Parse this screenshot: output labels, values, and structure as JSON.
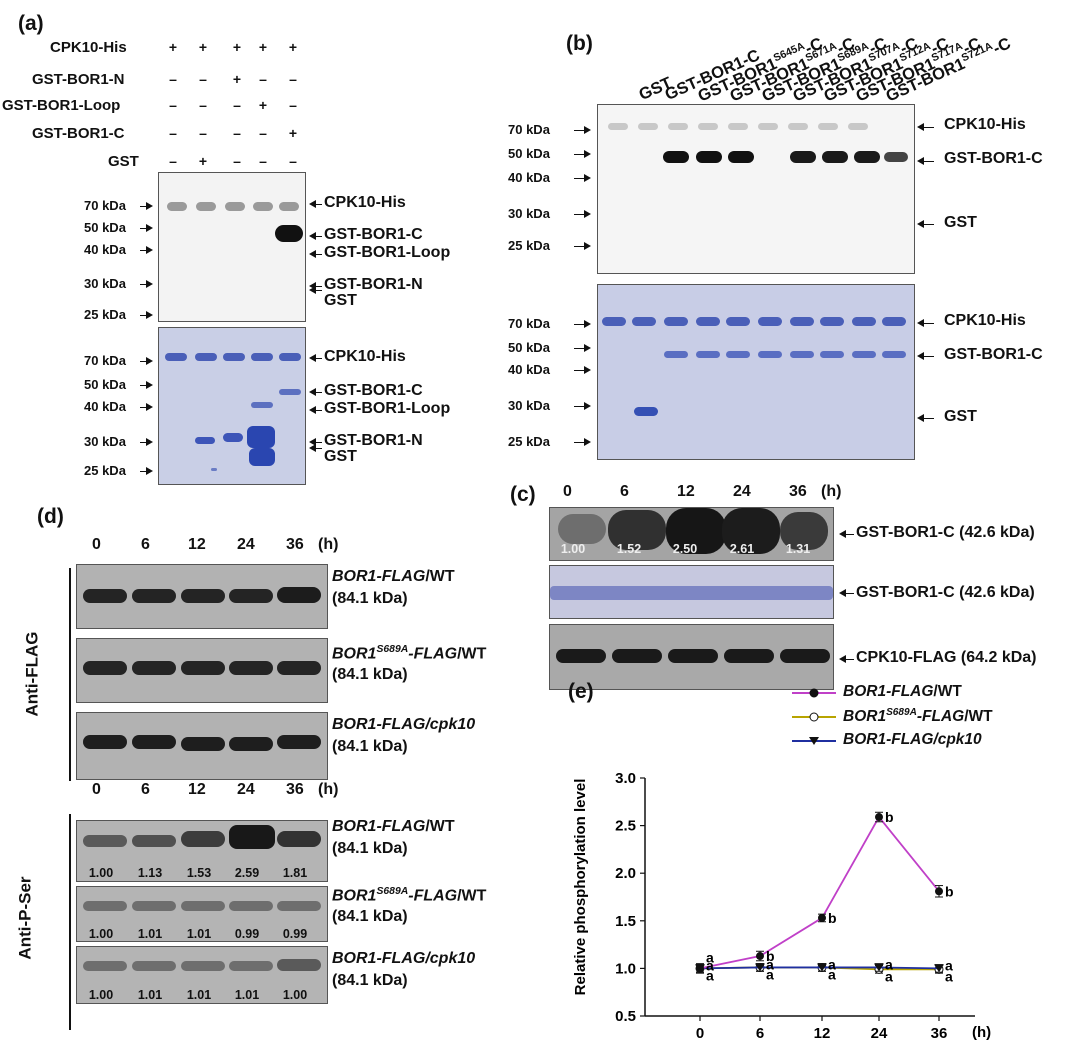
{
  "panel_a": {
    "letter": "(a)",
    "row_labels": [
      "CPK10-His",
      "GST-BOR1-N",
      "GST-BOR1-Loop",
      "GST-BOR1-C",
      "GST"
    ],
    "row_marks": [
      [
        "+",
        "+",
        "+",
        "+",
        "+"
      ],
      [
        "–",
        "–",
        "+",
        "–",
        "–"
      ],
      [
        "–",
        "–",
        "–",
        "+",
        "–"
      ],
      [
        "–",
        "–",
        "–",
        "–",
        "+"
      ],
      [
        "–",
        "+",
        "–",
        "–",
        "–"
      ]
    ],
    "autorad_markers": [
      "70 kDa",
      "50 kDa",
      "40 kDa",
      "30 kDa",
      "25 kDa"
    ],
    "autorad_right": [
      "CPK10-His",
      "GST-BOR1-C",
      "GST-BOR1-Loop",
      "GST-BOR1-N",
      "GST"
    ],
    "cbb_markers": [
      "70 kDa",
      "50 kDa",
      "40 kDa",
      "30 kDa",
      "25 kDa"
    ],
    "cbb_right": [
      "CPK10-His",
      "GST-BOR1-C",
      "GST-BOR1-Loop",
      "GST-BOR1-N",
      "GST"
    ]
  },
  "panel_b": {
    "letter": "(b)",
    "lanes": [
      {
        "main": "GST",
        "sup": ""
      },
      {
        "main": "GST-BOR1-C",
        "sup": ""
      },
      {
        "main": "GST-BOR1",
        "sup": "S645A",
        "tail": "-C"
      },
      {
        "main": "GST-BOR1",
        "sup": "S671A",
        "tail": "-C"
      },
      {
        "main": "GST-BOR1",
        "sup": "S689A",
        "tail": "-C"
      },
      {
        "main": "GST-BOR1",
        "sup": "S707A",
        "tail": "-C"
      },
      {
        "main": "GST-BOR1",
        "sup": "S712A",
        "tail": "-C"
      },
      {
        "main": "GST-BOR1",
        "sup": "S717A",
        "tail": "-C"
      },
      {
        "main": "GST-BOR1",
        "sup": "S721A",
        "tail": "-C"
      }
    ],
    "autorad_markers": [
      "70 kDa",
      "50 kDa",
      "40 kDa",
      "30 kDa",
      "25 kDa"
    ],
    "autorad_right": [
      "CPK10-His",
      "GST-BOR1-C",
      "GST"
    ],
    "cbb_markers": [
      "70 kDa",
      "50 kDa",
      "40 kDa",
      "30 kDa",
      "25 kDa"
    ],
    "cbb_right": [
      "CPK10-His",
      "GST-BOR1-C",
      "GST"
    ]
  },
  "panel_c": {
    "letter": "(c)",
    "timepoints": [
      "0",
      "6",
      "12",
      "24",
      "36"
    ],
    "unit": "(h)",
    "quant": [
      "1.00",
      "1.52",
      "2.50",
      "2.61",
      "1.31"
    ],
    "labels": [
      "GST-BOR1-C (42.6 kDa)",
      "GST-BOR1-C (42.6 kDa)",
      "CPK10-FLAG (64.2 kDa)"
    ]
  },
  "panel_d": {
    "letter": "(d)",
    "timepoints": [
      "0",
      "6",
      "12",
      "24",
      "36"
    ],
    "unit": "(h)",
    "group1_label": "Anti-FLAG",
    "group2_label": "Anti-P-Ser",
    "mw": "(84.1 kDa)",
    "blots": [
      {
        "g1": "BOR1-FLAG",
        "sup": "",
        "g2": "/WT"
      },
      {
        "g1": "BOR1",
        "sup": "S689A",
        "g2": "-FLAG",
        "g3": "/WT"
      },
      {
        "g1": "BOR1-FLAG/",
        "sup": "",
        "g2": "cpk10"
      }
    ],
    "pser_quant": [
      [
        "1.00",
        "1.13",
        "1.53",
        "2.59",
        "1.81"
      ],
      [
        "1.00",
        "1.01",
        "1.01",
        "0.99",
        "0.99"
      ],
      [
        "1.00",
        "1.01",
        "1.01",
        "1.01",
        "1.00"
      ]
    ]
  },
  "panel_e": {
    "letter": "(e)",
    "legend": [
      {
        "a": "BOR1-FLAG",
        "sup": "",
        "b": "/WT",
        "color": "#c040c8"
      },
      {
        "a": "BOR1",
        "sup": "S689A",
        "b": "-FLAG/WT",
        "color": "#b8a400"
      },
      {
        "a": "BOR1-FLAG/",
        "sup": "",
        "b": "cpk10",
        "color": "#1f2fa0"
      }
    ]
  },
  "chart_data": {
    "type": "line",
    "title": "",
    "xlabel": "(h)",
    "ylabel": "Relative phosphorylation level",
    "x": [
      0,
      6,
      12,
      24,
      36
    ],
    "x_ticks": [
      "0",
      "6",
      "12",
      "24",
      "36"
    ],
    "ylim": [
      0.5,
      3.0
    ],
    "y_ticks": [
      "0.5",
      "1.0",
      "1.5",
      "2.0",
      "2.5",
      "3.0"
    ],
    "series": [
      {
        "name": "BOR1-FLAG/WT",
        "color": "#c040c8",
        "marker": "filled-circle",
        "values": [
          1.0,
          1.13,
          1.53,
          2.59,
          1.81
        ],
        "errors": [
          0.05,
          0.05,
          0.04,
          0.05,
          0.06
        ],
        "letters": [
          "a",
          "b",
          "b",
          "b",
          "b"
        ]
      },
      {
        "name": "BOR1S689A-FLAG/WT",
        "color": "#b8a400",
        "marker": "open-circle",
        "values": [
          1.0,
          1.01,
          1.01,
          0.99,
          0.99
        ],
        "errors": [
          0.04,
          0.04,
          0.04,
          0.04,
          0.04
        ],
        "letters": [
          "a",
          "a",
          "a",
          "a",
          "a"
        ]
      },
      {
        "name": "BOR1-FLAG/cpk10",
        "color": "#1f2fa0",
        "marker": "filled-triangle",
        "values": [
          1.0,
          1.01,
          1.01,
          1.01,
          1.0
        ],
        "errors": [
          0.04,
          0.04,
          0.04,
          0.04,
          0.04
        ],
        "letters": [
          "a",
          "a",
          "a",
          "a",
          "a"
        ]
      }
    ]
  }
}
